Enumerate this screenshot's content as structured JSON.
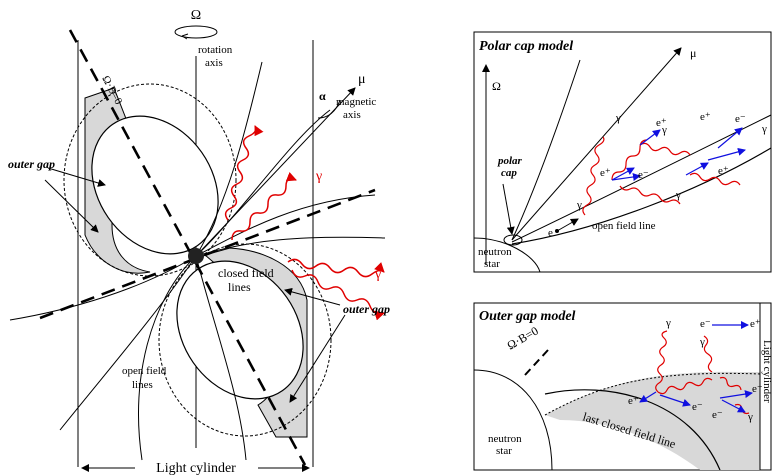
{
  "left": {
    "omega": "Ω",
    "rotation_axis": [
      "rotation",
      "axis"
    ],
    "omega_b": "Ω·B=0",
    "alpha": "α",
    "mu": "μ",
    "magnetic_axis": [
      "magnetic",
      "axis"
    ],
    "gamma1": "γ",
    "gamma2": "γ",
    "outer_gap_left": "outer gap",
    "outer_gap_right": "outer gap",
    "closed_field_lines": [
      "closed field",
      "lines"
    ],
    "open_field_lines": [
      "open field",
      "lines"
    ],
    "light_cylinder": "Light cylinder"
  },
  "polar": {
    "title": "Polar cap model",
    "omega": "Ω",
    "mu": "μ",
    "polar_cap": [
      "polar",
      "cap"
    ],
    "neutron_star": [
      "neutron",
      "star"
    ],
    "open_field_line": "open field line",
    "electron": "e",
    "gamma": "γ",
    "e_minus": "e⁻",
    "e_plus": "e⁺"
  },
  "outer": {
    "title": "Outer gap model",
    "omega_b": "Ω·B=0",
    "neutron_star": [
      "neutron",
      "star"
    ],
    "last_closed": "last closed field line",
    "light_cylinder": "Light cylinder",
    "gamma": "γ",
    "e_minus": "e⁻",
    "e_plus": "e⁺"
  },
  "colors": {
    "photon": "#e00000",
    "pair": "#1010e0",
    "gap": "#d8d8d8"
  }
}
